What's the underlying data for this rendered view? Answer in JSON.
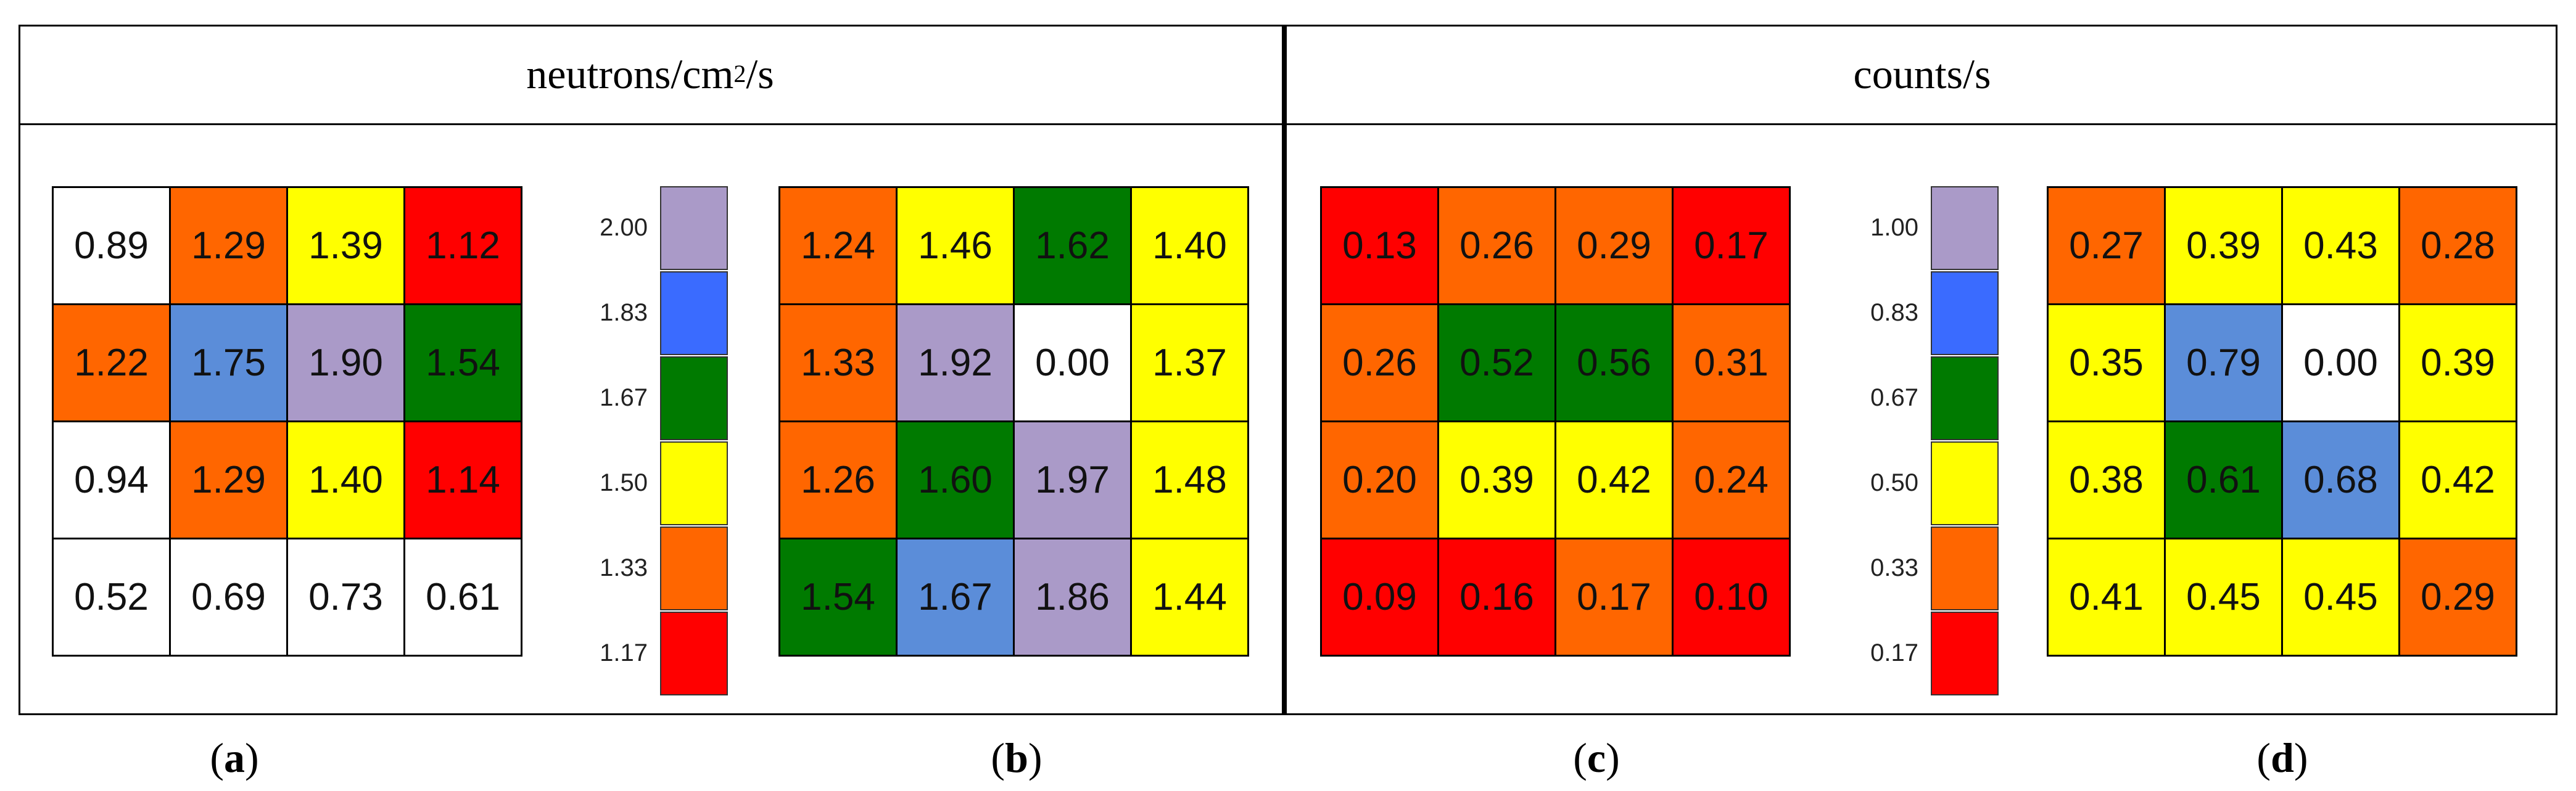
{
  "headers": {
    "left_pre": "neutrons/cm",
    "left_sup": "2",
    "left_post": "/s",
    "right": "counts/s"
  },
  "colors": {
    "white": "#ffffff",
    "red": "#ff0000",
    "orange": "#ff6600",
    "yellow": "#ffff00",
    "green": "#007a00",
    "blue": "#5b8dd9",
    "lilac": "#aa9ac8",
    "bright_blue": "#3a6bff"
  },
  "chart_data": [
    {
      "type": "heatmap",
      "caption_letter": "a",
      "rows": [
        [
          0.89,
          1.29,
          1.39,
          1.12
        ],
        [
          1.22,
          1.75,
          1.9,
          1.54
        ],
        [
          0.94,
          1.29,
          1.4,
          1.14
        ],
        [
          0.52,
          0.69,
          0.73,
          0.61
        ]
      ],
      "labels": [
        [
          "0.89",
          "1.29",
          "1.39",
          "1.12"
        ],
        [
          "1.22",
          "1.75",
          "1.90",
          "1.54"
        ],
        [
          "0.94",
          "1.29",
          "1.40",
          "1.14"
        ],
        [
          "0.52",
          "0.69",
          "0.73",
          "0.61"
        ]
      ],
      "color_keys": [
        [
          "white",
          "orange",
          "yellow",
          "red"
        ],
        [
          "orange",
          "blue",
          "lilac",
          "green"
        ],
        [
          "white",
          "orange",
          "yellow",
          "red"
        ],
        [
          "white",
          "white",
          "white",
          "white"
        ]
      ]
    },
    {
      "type": "heatmap",
      "caption_letter": "b",
      "rows": [
        [
          1.24,
          1.46,
          1.62,
          1.4
        ],
        [
          1.33,
          1.92,
          0.0,
          1.37
        ],
        [
          1.26,
          1.6,
          1.97,
          1.48
        ],
        [
          1.54,
          1.67,
          1.86,
          1.44
        ]
      ],
      "labels": [
        [
          "1.24",
          "1.46",
          "1.62",
          "1.40"
        ],
        [
          "1.33",
          "1.92",
          "0.00",
          "1.37"
        ],
        [
          "1.26",
          "1.60",
          "1.97",
          "1.48"
        ],
        [
          "1.54",
          "1.67",
          "1.86",
          "1.44"
        ]
      ],
      "color_keys": [
        [
          "orange",
          "yellow",
          "green",
          "yellow"
        ],
        [
          "orange",
          "lilac",
          "white",
          "yellow"
        ],
        [
          "orange",
          "green",
          "lilac",
          "yellow"
        ],
        [
          "green",
          "blue",
          "lilac",
          "yellow"
        ]
      ]
    },
    {
      "type": "heatmap",
      "caption_letter": "c",
      "rows": [
        [
          0.13,
          0.26,
          0.29,
          0.17
        ],
        [
          0.26,
          0.52,
          0.56,
          0.31
        ],
        [
          0.2,
          0.39,
          0.42,
          0.24
        ],
        [
          0.09,
          0.16,
          0.17,
          0.1
        ]
      ],
      "labels": [
        [
          "0.13",
          "0.26",
          "0.29",
          "0.17"
        ],
        [
          "0.26",
          "0.52",
          "0.56",
          "0.31"
        ],
        [
          "0.20",
          "0.39",
          "0.42",
          "0.24"
        ],
        [
          "0.09",
          "0.16",
          "0.17",
          "0.10"
        ]
      ],
      "color_keys": [
        [
          "red",
          "orange",
          "orange",
          "red"
        ],
        [
          "orange",
          "green",
          "green",
          "orange"
        ],
        [
          "orange",
          "yellow",
          "yellow",
          "orange"
        ],
        [
          "red",
          "red",
          "orange",
          "red"
        ]
      ]
    },
    {
      "type": "heatmap",
      "caption_letter": "d",
      "rows": [
        [
          0.27,
          0.39,
          0.43,
          0.28
        ],
        [
          0.35,
          0.79,
          0.0,
          0.39
        ],
        [
          0.38,
          0.61,
          0.68,
          0.42
        ],
        [
          0.41,
          0.45,
          0.45,
          0.29
        ]
      ],
      "labels": [
        [
          "0.27",
          "0.39",
          "0.43",
          "0.28"
        ],
        [
          "0.35",
          "0.79",
          "0.00",
          "0.39"
        ],
        [
          "0.38",
          "0.61",
          "0.68",
          "0.42"
        ],
        [
          "0.41",
          "0.45",
          "0.45",
          "0.29"
        ]
      ],
      "color_keys": [
        [
          "orange",
          "yellow",
          "yellow",
          "orange"
        ],
        [
          "yellow",
          "blue",
          "white",
          "yellow"
        ],
        [
          "yellow",
          "green",
          "blue",
          "yellow"
        ],
        [
          "yellow",
          "yellow",
          "yellow",
          "orange"
        ]
      ]
    }
  ],
  "scales": [
    {
      "tick_labels": [
        "2.00",
        "1.83",
        "1.67",
        "1.50",
        "1.33",
        "1.17"
      ],
      "color_keys": [
        "lilac",
        "bright_blue",
        "green",
        "yellow",
        "orange",
        "red"
      ]
    },
    {
      "tick_labels": [
        "1.00",
        "0.83",
        "0.67",
        "0.50",
        "0.33",
        "0.17"
      ],
      "color_keys": [
        "lilac",
        "bright_blue",
        "green",
        "yellow",
        "orange",
        "red"
      ]
    }
  ]
}
